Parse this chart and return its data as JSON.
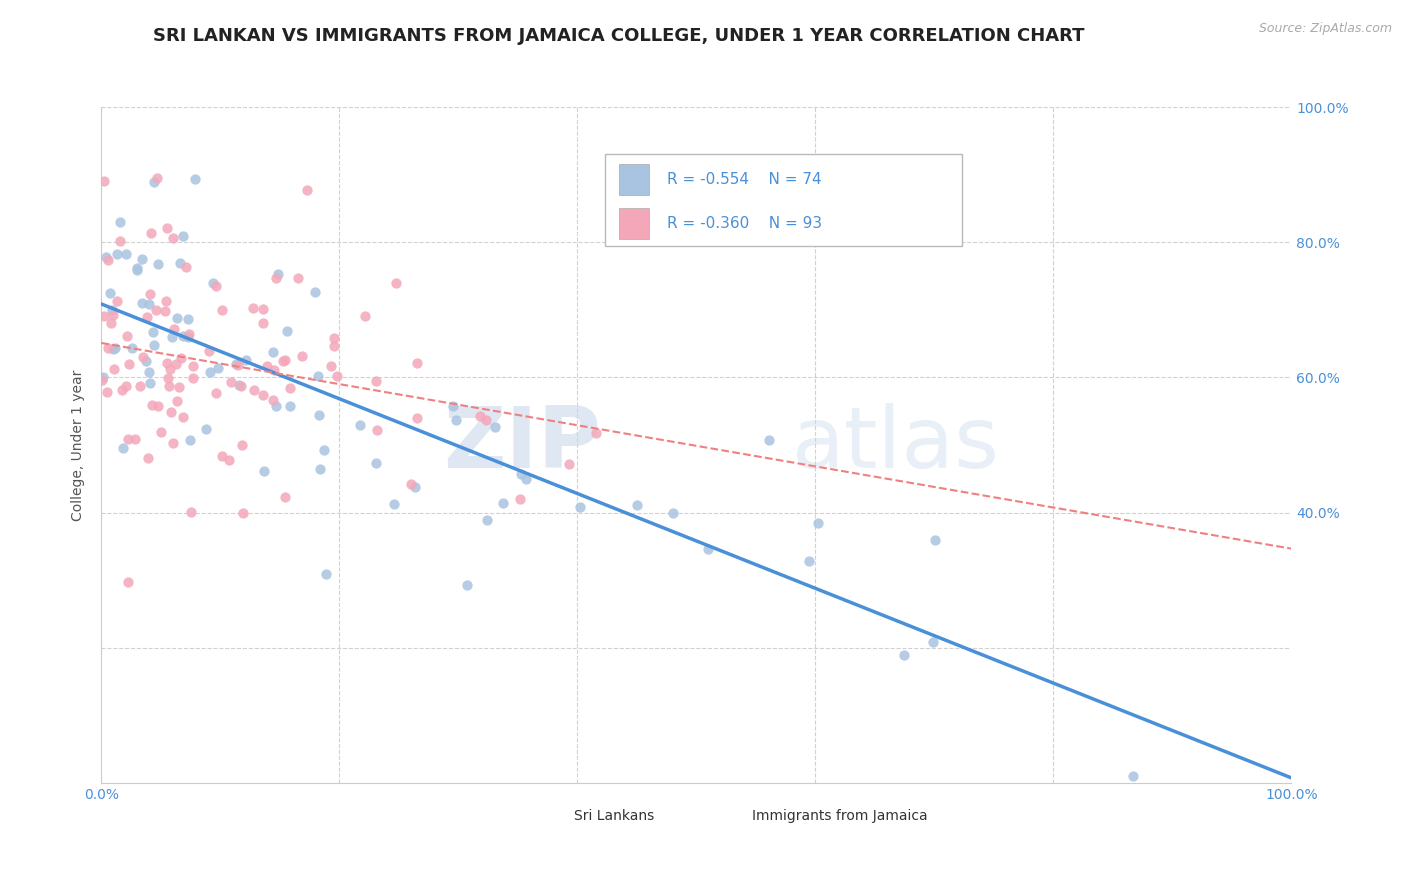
{
  "title": "SRI LANKAN VS IMMIGRANTS FROM JAMAICA COLLEGE, UNDER 1 YEAR CORRELATION CHART",
  "source": "Source: ZipAtlas.com",
  "ylabel": "College, Under 1 year",
  "xlim": [
    0.0,
    1.0
  ],
  "ylim": [
    0.0,
    1.0
  ],
  "sri_lankan_color": "#a8c4e0",
  "jamaica_color": "#f4a7b9",
  "sri_lankan_line_color": "#4a90d9",
  "jamaica_line_color": "#f08080",
  "legend_text_color": "#4a90d9",
  "watermark_zip": "ZIP",
  "watermark_atlas": "atlas",
  "legend_r1": "R = -0.554",
  "legend_n1": "N = 74",
  "legend_r2": "R = -0.360",
  "legend_n2": "N = 93",
  "sri_lankans_label": "Sri Lankans",
  "jamaica_label": "Immigrants from Jamaica",
  "title_fontsize": 13,
  "axis_label_fontsize": 10,
  "tick_fontsize": 10,
  "background_color": "#ffffff",
  "grid_color": "#cccccc",
  "seed": 42,
  "sri_lankan_N": 74,
  "jamaica_N": 93
}
